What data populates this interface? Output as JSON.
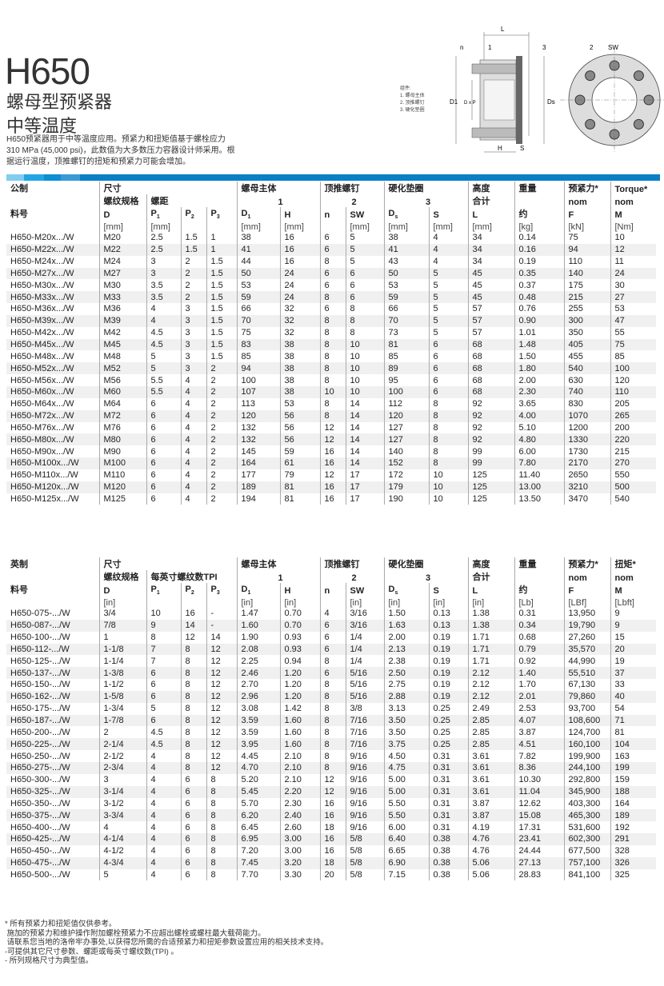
{
  "header": {
    "title": "H650",
    "subtitle_1": "螺母型预紧器",
    "subtitle_2": "中等温度",
    "description": "H650预紧器用于中等温度应用。预紧力和扭矩值基于螺栓应力310 MPa (45,000 psi)，此数值为大多数压力容器设计师采用。根据运行温度，顶推螺钉的扭矩和预紧力可能会增加。"
  },
  "diagram": {
    "legend_title": "组件:",
    "legend_items": [
      "1. 螺母主体",
      "2. 顶推螺钉",
      "3. 硬化垫圈"
    ],
    "labels": {
      "n": "n",
      "one": "1",
      "three": "3",
      "two": "2",
      "sw": "SW",
      "l": "L",
      "h": "H",
      "s": "S",
      "d1": "D1",
      "dxp": "D x P",
      "ds": "Ds"
    }
  },
  "colors": {
    "accent": "#0a7fc4",
    "bar": [
      "#7fcdf0",
      "#22a6e3",
      "#0c8fd3",
      "#3a9ad6",
      "#0a7fc4"
    ]
  },
  "metric": {
    "header": [
      [
        {
          "t": "公制"
        },
        {
          "t": "尺寸",
          "span": 4
        },
        {
          "t": "螺母主体",
          "span": 2
        },
        {
          "t": "顶推螺钉",
          "span": 2
        },
        {
          "t": "硬化垫圈",
          "span": 2
        },
        {
          "t": "高度"
        },
        {
          "t": "重量"
        },
        {
          "t": "预紧力*"
        },
        {
          "t": "Torque*"
        }
      ],
      [
        {
          "t": ""
        },
        {
          "t": "螺纹规格"
        },
        {
          "t": "螺距",
          "span": 3
        },
        {
          "t": "1",
          "span": 2,
          "c": 1
        },
        {
          "t": "2",
          "span": 2,
          "c": 1
        },
        {
          "t": "3",
          "span": 2,
          "c": 1
        },
        {
          "t": "合计"
        },
        {
          "t": ""
        },
        {
          "t": "nom"
        },
        {
          "t": "nom"
        }
      ],
      [
        {
          "t": "料号"
        },
        {
          "t": "D"
        },
        {
          "t": "P",
          "s": "1"
        },
        {
          "t": "P",
          "s": "2"
        },
        {
          "t": "P",
          "s": "3"
        },
        {
          "t": "D",
          "s": "1"
        },
        {
          "t": "H"
        },
        {
          "t": "n"
        },
        {
          "t": "SW"
        },
        {
          "t": "D",
          "s": "s"
        },
        {
          "t": "S"
        },
        {
          "t": "L"
        },
        {
          "t": "约"
        },
        {
          "t": "F"
        },
        {
          "t": "M"
        }
      ],
      [
        {
          "t": ""
        },
        {
          "t": "[mm]"
        },
        {
          "t": "[mm]"
        },
        {
          "t": ""
        },
        {
          "t": ""
        },
        {
          "t": "[mm]"
        },
        {
          "t": "[mm]"
        },
        {
          "t": ""
        },
        {
          "t": "[mm]"
        },
        {
          "t": "[mm]"
        },
        {
          "t": "[mm]"
        },
        {
          "t": "[mm]"
        },
        {
          "t": "[kg]"
        },
        {
          "t": "[kN]"
        },
        {
          "t": "[Nm]"
        }
      ]
    ],
    "rows": [
      [
        "H650-M20x.../W",
        "M20",
        "2.5",
        "1.5",
        "1",
        "38",
        "16",
        "6",
        "5",
        "38",
        "4",
        "34",
        "0.14",
        "75",
        "10"
      ],
      [
        "H650-M22x.../W",
        "M22",
        "2.5",
        "1.5",
        "1",
        "41",
        "16",
        "6",
        "5",
        "41",
        "4",
        "34",
        "0.16",
        "94",
        "12"
      ],
      [
        "H650-M24x.../W",
        "M24",
        "3",
        "2",
        "1.5",
        "44",
        "16",
        "8",
        "5",
        "43",
        "4",
        "34",
        "0.19",
        "110",
        "11"
      ],
      [
        "H650-M27x.../W",
        "M27",
        "3",
        "2",
        "1.5",
        "50",
        "24",
        "6",
        "6",
        "50",
        "5",
        "45",
        "0.35",
        "140",
        "24"
      ],
      [
        "H650-M30x.../W",
        "M30",
        "3.5",
        "2",
        "1.5",
        "53",
        "24",
        "6",
        "6",
        "53",
        "5",
        "45",
        "0.37",
        "175",
        "30"
      ],
      [
        "H650-M33x.../W",
        "M33",
        "3.5",
        "2",
        "1.5",
        "59",
        "24",
        "8",
        "6",
        "59",
        "5",
        "45",
        "0.48",
        "215",
        "27"
      ],
      [
        "H650-M36x.../W",
        "M36",
        "4",
        "3",
        "1.5",
        "66",
        "32",
        "6",
        "8",
        "66",
        "5",
        "57",
        "0.76",
        "255",
        "53"
      ],
      [
        "H650-M39x.../W",
        "M39",
        "4",
        "3",
        "1.5",
        "70",
        "32",
        "8",
        "8",
        "70",
        "5",
        "57",
        "0.90",
        "300",
        "47"
      ],
      [
        "H650-M42x.../W",
        "M42",
        "4.5",
        "3",
        "1.5",
        "75",
        "32",
        "8",
        "8",
        "73",
        "5",
        "57",
        "1.01",
        "350",
        "55"
      ],
      [
        "H650-M45x.../W",
        "M45",
        "4.5",
        "3",
        "1.5",
        "83",
        "38",
        "8",
        "10",
        "81",
        "6",
        "68",
        "1.48",
        "405",
        "75"
      ],
      [
        "H650-M48x.../W",
        "M48",
        "5",
        "3",
        "1.5",
        "85",
        "38",
        "8",
        "10",
        "85",
        "6",
        "68",
        "1.50",
        "455",
        "85"
      ],
      [
        "H650-M52x.../W",
        "M52",
        "5",
        "3",
        "2",
        "94",
        "38",
        "8",
        "10",
        "89",
        "6",
        "68",
        "1.80",
        "540",
        "100"
      ],
      [
        "H650-M56x.../W",
        "M56",
        "5.5",
        "4",
        "2",
        "100",
        "38",
        "8",
        "10",
        "95",
        "6",
        "68",
        "2.00",
        "630",
        "120"
      ],
      [
        "H650-M60x.../W",
        "M60",
        "5.5",
        "4",
        "2",
        "107",
        "38",
        "10",
        "10",
        "100",
        "6",
        "68",
        "2.30",
        "740",
        "110"
      ],
      [
        "H650-M64x.../W",
        "M64",
        "6",
        "4",
        "2",
        "113",
        "53",
        "8",
        "14",
        "112",
        "8",
        "92",
        "3.65",
        "830",
        "205"
      ],
      [
        "H650-M72x.../W",
        "M72",
        "6",
        "4",
        "2",
        "120",
        "56",
        "8",
        "14",
        "120",
        "8",
        "92",
        "4.00",
        "1070",
        "265"
      ],
      [
        "H650-M76x.../W",
        "M76",
        "6",
        "4",
        "2",
        "132",
        "56",
        "12",
        "14",
        "127",
        "8",
        "92",
        "5.10",
        "1200",
        "200"
      ],
      [
        "H650-M80x.../W",
        "M80",
        "6",
        "4",
        "2",
        "132",
        "56",
        "12",
        "14",
        "127",
        "8",
        "92",
        "4.80",
        "1330",
        "220"
      ],
      [
        "H650-M90x.../W",
        "M90",
        "6",
        "4",
        "2",
        "145",
        "59",
        "16",
        "14",
        "140",
        "8",
        "99",
        "6.00",
        "1730",
        "215"
      ],
      [
        "H650-M100x.../W",
        "M100",
        "6",
        "4",
        "2",
        "164",
        "61",
        "16",
        "14",
        "152",
        "8",
        "99",
        "7.80",
        "2170",
        "270"
      ],
      [
        "H650-M110x.../W",
        "M110",
        "6",
        "4",
        "2",
        "177",
        "79",
        "12",
        "17",
        "172",
        "10",
        "125",
        "11.40",
        "2650",
        "550"
      ],
      [
        "H650-M120x.../W",
        "M120",
        "6",
        "4",
        "2",
        "189",
        "81",
        "16",
        "17",
        "179",
        "10",
        "125",
        "13.00",
        "3210",
        "500"
      ],
      [
        "H650-M125x.../W",
        "M125",
        "6",
        "4",
        "2",
        "194",
        "81",
        "16",
        "17",
        "190",
        "10",
        "125",
        "13.50",
        "3470",
        "540"
      ]
    ]
  },
  "imperial": {
    "header": [
      [
        {
          "t": "英制"
        },
        {
          "t": "尺寸",
          "span": 4
        },
        {
          "t": "螺母主体",
          "span": 2
        },
        {
          "t": "顶推螺钉",
          "span": 2
        },
        {
          "t": "硬化垫圈",
          "span": 2
        },
        {
          "t": "高度"
        },
        {
          "t": "重量"
        },
        {
          "t": "预紧力*"
        },
        {
          "t": "扭矩*"
        }
      ],
      [
        {
          "t": ""
        },
        {
          "t": "螺纹规格"
        },
        {
          "t": "每英寸螺纹数TPI",
          "span": 3
        },
        {
          "t": "1",
          "span": 2,
          "c": 1
        },
        {
          "t": "2",
          "span": 2,
          "c": 1
        },
        {
          "t": "3",
          "span": 2,
          "c": 1
        },
        {
          "t": "合计"
        },
        {
          "t": ""
        },
        {
          "t": "nom"
        },
        {
          "t": "nom"
        }
      ],
      [
        {
          "t": "料号"
        },
        {
          "t": "D"
        },
        {
          "t": "P",
          "s": "1"
        },
        {
          "t": "P",
          "s": "2"
        },
        {
          "t": "P",
          "s": "3"
        },
        {
          "t": "D",
          "s": "1"
        },
        {
          "t": "H"
        },
        {
          "t": "n"
        },
        {
          "t": "SW"
        },
        {
          "t": "D",
          "s": "s"
        },
        {
          "t": "S"
        },
        {
          "t": "L"
        },
        {
          "t": "约"
        },
        {
          "t": "F"
        },
        {
          "t": "M"
        }
      ],
      [
        {
          "t": ""
        },
        {
          "t": "[in]"
        },
        {
          "t": ""
        },
        {
          "t": ""
        },
        {
          "t": ""
        },
        {
          "t": "[in]"
        },
        {
          "t": "[in]"
        },
        {
          "t": ""
        },
        {
          "t": "[in]"
        },
        {
          "t": "[in]"
        },
        {
          "t": "[in]"
        },
        {
          "t": "[in]"
        },
        {
          "t": "[Lb]"
        },
        {
          "t": "[LBf]"
        },
        {
          "t": "[Lbft]"
        }
      ]
    ],
    "rows": [
      [
        "H650-075-.../W",
        "3/4",
        "10",
        "16",
        "-",
        "1.47",
        "0.70",
        "4",
        "3/16",
        "1.50",
        "0.13",
        "1.38",
        "0.31",
        "13,950",
        "9"
      ],
      [
        "H650-087-.../W",
        "7/8",
        "9",
        "14",
        "-",
        "1.60",
        "0.70",
        "6",
        "3/16",
        "1.63",
        "0.13",
        "1.38",
        "0.34",
        "19,790",
        "9"
      ],
      [
        "H650-100-.../W",
        "1",
        "8",
        "12",
        "14",
        "1.90",
        "0.93",
        "6",
        "1/4",
        "2.00",
        "0.19",
        "1.71",
        "0.68",
        "27,260",
        "15"
      ],
      [
        "H650-112-.../W",
        "1-1/8",
        "7",
        "8",
        "12",
        "2.08",
        "0.93",
        "6",
        "1/4",
        "2.13",
        "0.19",
        "1.71",
        "0.79",
        "35,570",
        "20"
      ],
      [
        "H650-125-.../W",
        "1-1/4",
        "7",
        "8",
        "12",
        "2.25",
        "0.94",
        "8",
        "1/4",
        "2.38",
        "0.19",
        "1.71",
        "0.92",
        "44,990",
        "19"
      ],
      [
        "H650-137-.../W",
        "1-3/8",
        "6",
        "8",
        "12",
        "2.46",
        "1.20",
        "6",
        "5/16",
        "2.50",
        "0.19",
        "2.12",
        "1.40",
        "55,510",
        "37"
      ],
      [
        "H650-150-.../W",
        "1-1/2",
        "6",
        "8",
        "12",
        "2.70",
        "1.20",
        "8",
        "5/16",
        "2.75",
        "0.19",
        "2.12",
        "1.70",
        "67,130",
        "33"
      ],
      [
        "H650-162-.../W",
        "1-5/8",
        "6",
        "8",
        "12",
        "2.96",
        "1.20",
        "8",
        "5/16",
        "2.88",
        "0.19",
        "2.12",
        "2.01",
        "79,860",
        "40"
      ],
      [
        "H650-175-.../W",
        "1-3/4",
        "5",
        "8",
        "12",
        "3.08",
        "1.42",
        "8",
        "3/8",
        "3.13",
        "0.25",
        "2.49",
        "2.53",
        "93,700",
        "54"
      ],
      [
        "H650-187-.../W",
        "1-7/8",
        "6",
        "8",
        "12",
        "3.59",
        "1.60",
        "8",
        "7/16",
        "3.50",
        "0.25",
        "2.85",
        "4.07",
        "108,600",
        "71"
      ],
      [
        "H650-200-.../W",
        "2",
        "4.5",
        "8",
        "12",
        "3.59",
        "1.60",
        "8",
        "7/16",
        "3.50",
        "0.25",
        "2.85",
        "3.87",
        "124,700",
        "81"
      ],
      [
        "H650-225-.../W",
        "2-1/4",
        "4.5",
        "8",
        "12",
        "3.95",
        "1.60",
        "8",
        "7/16",
        "3.75",
        "0.25",
        "2.85",
        "4.51",
        "160,100",
        "104"
      ],
      [
        "H650-250-.../W",
        "2-1/2",
        "4",
        "8",
        "12",
        "4.45",
        "2.10",
        "8",
        "9/16",
        "4.50",
        "0.31",
        "3.61",
        "7.82",
        "199,900",
        "163"
      ],
      [
        "H650-275-.../W",
        "2-3/4",
        "4",
        "8",
        "12",
        "4.70",
        "2.10",
        "8",
        "9/16",
        "4.75",
        "0.31",
        "3.61",
        "8.36",
        "244,100",
        "199"
      ],
      [
        "H650-300-.../W",
        "3",
        "4",
        "6",
        "8",
        "5.20",
        "2.10",
        "12",
        "9/16",
        "5.00",
        "0.31",
        "3.61",
        "10.30",
        "292,800",
        "159"
      ],
      [
        "H650-325-.../W",
        "3-1/4",
        "4",
        "6",
        "8",
        "5.45",
        "2.20",
        "12",
        "9/16",
        "5.00",
        "0.31",
        "3.61",
        "11.04",
        "345,900",
        "188"
      ],
      [
        "H650-350-.../W",
        "3-1/2",
        "4",
        "6",
        "8",
        "5.70",
        "2.30",
        "16",
        "9/16",
        "5.50",
        "0.31",
        "3.87",
        "12.62",
        "403,300",
        "164"
      ],
      [
        "H650-375-.../W",
        "3-3/4",
        "4",
        "6",
        "8",
        "6.20",
        "2.40",
        "16",
        "9/16",
        "5.50",
        "0.31",
        "3.87",
        "15.08",
        "465,300",
        "189"
      ],
      [
        "H650-400-.../W",
        "4",
        "4",
        "6",
        "8",
        "6.45",
        "2.60",
        "18",
        "9/16",
        "6.00",
        "0.31",
        "4.19",
        "17.31",
        "531,600",
        "192"
      ],
      [
        "H650-425-.../W",
        "4-1/4",
        "4",
        "6",
        "8",
        "6.95",
        "3.00",
        "16",
        "5/8",
        "6.40",
        "0.38",
        "4.76",
        "23.41",
        "602,300",
        "291"
      ],
      [
        "H650-450-.../W",
        "4-1/2",
        "4",
        "6",
        "8",
        "7.20",
        "3.00",
        "16",
        "5/8",
        "6.65",
        "0.38",
        "4.76",
        "24.44",
        "677,500",
        "328"
      ],
      [
        "H650-475-.../W",
        "4-3/4",
        "4",
        "6",
        "8",
        "7.45",
        "3.20",
        "18",
        "5/8",
        "6.90",
        "0.38",
        "5.06",
        "27.13",
        "757,100",
        "326"
      ],
      [
        "H650-500-.../W",
        "5",
        "4",
        "6",
        "8",
        "7.70",
        "3.30",
        "20",
        "5/8",
        "7.15",
        "0.38",
        "5.06",
        "28.83",
        "841,100",
        "325"
      ]
    ]
  },
  "footnotes": [
    "* 所有预紧力和扭矩值仅供参考。",
    " 施加的预紧力和维护操作附加螺栓预紧力不应超出螺栓或螺柱最大载荷能力。",
    " 请联系您当地的洛帝牢办事处,以获得您所需的合适预紧力和扭矩参数设置应用的相关技术支持。",
    "-可提供其它尺寸参数、螺距或每英寸螺纹数(TPI) 。",
    "- 所列规格尺寸为典型值。"
  ]
}
